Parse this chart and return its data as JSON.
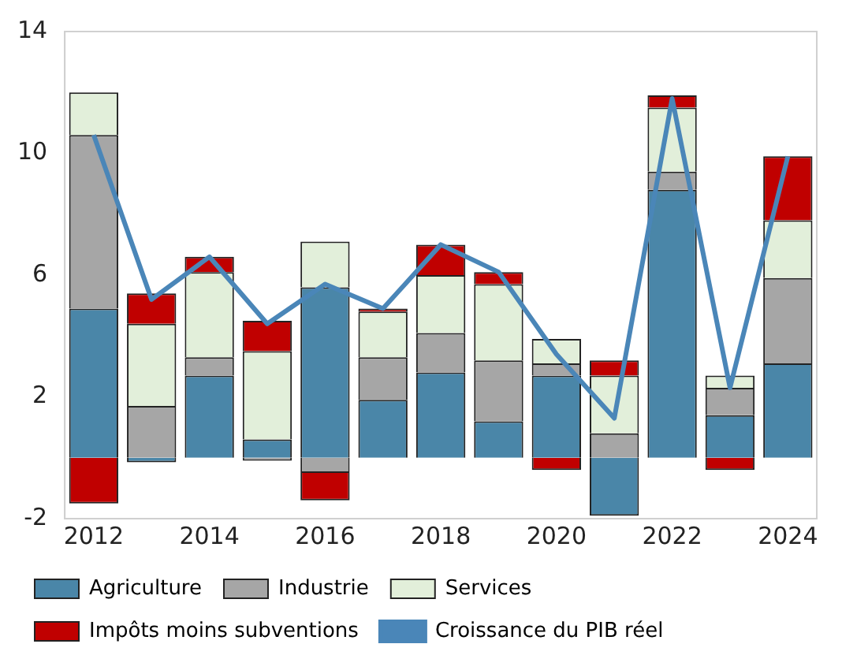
{
  "chart_data": {
    "type": "bar",
    "stacked": true,
    "categories": [
      "2012",
      null,
      "2014",
      null,
      "2016",
      null,
      "2018",
      null,
      "2020",
      null,
      "2022",
      null,
      "2024"
    ],
    "series": [
      {
        "name": "Agriculture",
        "color": "#4a86a8",
        "values": [
          4.9,
          -0.15,
          2.7,
          0.6,
          5.6,
          1.9,
          2.8,
          1.2,
          2.7,
          -1.9,
          8.8,
          1.4,
          3.1
        ]
      },
      {
        "name": "Industrie",
        "color": "#a6a6a6",
        "values": [
          5.7,
          1.7,
          0.6,
          -0.1,
          -0.5,
          1.4,
          1.3,
          2.0,
          0.4,
          0.8,
          0.6,
          0.9,
          2.8
        ]
      },
      {
        "name": "Services",
        "color": "#e2efda",
        "values": [
          1.4,
          2.7,
          2.8,
          2.9,
          1.5,
          1.5,
          1.9,
          2.5,
          0.8,
          1.9,
          2.1,
          0.4,
          1.9
        ]
      },
      {
        "name": "Impôts moins subventions",
        "color": "#c00000",
        "values": [
          -1.5,
          1.0,
          0.5,
          1.0,
          -0.9,
          0.1,
          1.0,
          0.4,
          -0.4,
          0.5,
          0.4,
          -0.4,
          2.1
        ]
      },
      {
        "name": "Croissance du PIB réel",
        "type": "line",
        "color": "#4a86b8",
        "values": [
          10.6,
          5.2,
          6.6,
          4.4,
          5.7,
          4.9,
          7.0,
          6.1,
          3.4,
          1.3,
          11.8,
          2.3,
          9.9
        ]
      }
    ],
    "ylim": [
      -2,
      14
    ],
    "yticks": [
      -2,
      2,
      6,
      10,
      14
    ],
    "grid": false,
    "legend": "bottom",
    "marker": "none"
  }
}
